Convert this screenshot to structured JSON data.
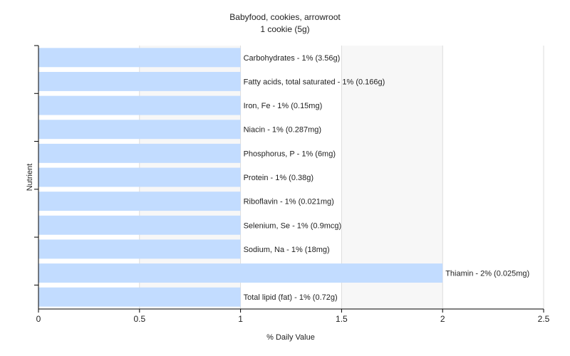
{
  "chart_data": {
    "type": "bar",
    "orientation": "horizontal",
    "title": "Babyfood, cookies, arrowroot",
    "subtitle": "1 cookie (5g)",
    "xlabel": "% Daily Value",
    "ylabel": "Nutrient",
    "xlim": [
      0,
      2.5
    ],
    "xticks": [
      "0",
      "0.5",
      "1",
      "1.5",
      "2",
      "2.5"
    ],
    "grid": true,
    "bar_color": "#c2dcff",
    "categories": [
      "Carbohydrates",
      "Fatty acids, total saturated",
      "Iron, Fe",
      "Niacin",
      "Phosphorus, P",
      "Protein",
      "Riboflavin",
      "Selenium, Se",
      "Sodium, Na",
      "Thiamin",
      "Total lipid (fat)"
    ],
    "values": [
      1,
      1,
      1,
      1,
      1,
      1,
      1,
      1,
      1,
      2,
      1
    ],
    "labels": [
      "Carbohydrates - 1% (3.56g)",
      "Fatty acids, total saturated - 1% (0.166g)",
      "Iron, Fe - 1% (0.15mg)",
      "Niacin - 1% (0.287mg)",
      "Phosphorus, P - 1% (6mg)",
      "Protein - 1% (0.38g)",
      "Riboflavin - 1% (0.021mg)",
      "Selenium, Se - 1% (0.9mcg)",
      "Sodium, Na - 1% (18mg)",
      "Thiamin - 2% (0.025mg)",
      "Total lipid (fat) - 1% (0.72g)"
    ]
  }
}
